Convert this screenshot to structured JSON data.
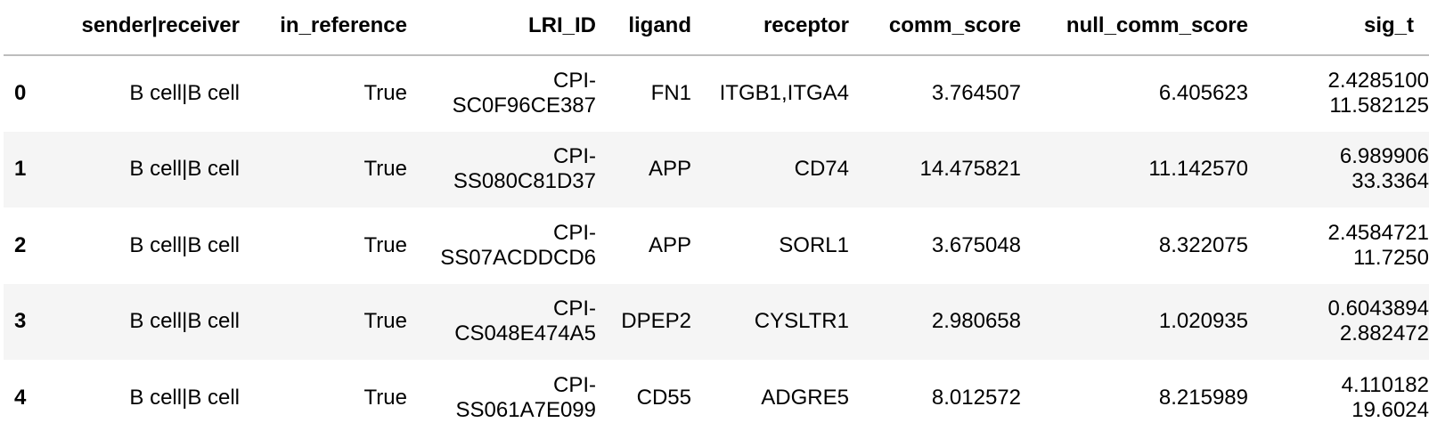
{
  "table": {
    "columns": [
      "",
      "sender|receiver",
      "in_reference",
      "LRI_ID",
      "ligand",
      "receptor",
      "comm_score",
      "null_comm_score",
      "sig_t"
    ],
    "rows": [
      {
        "index": "0",
        "sender_receiver": "B cell|B cell",
        "in_reference": "True",
        "lri_id_line1": "CPI-",
        "lri_id_line2": "SC0F96CE387",
        "ligand": "FN1",
        "receptor": "ITGB1,ITGA4",
        "comm_score": "3.764507",
        "null_comm_score": "6.405623",
        "sig_line1": "2.4285100",
        "sig_line2": "11.582125"
      },
      {
        "index": "1",
        "sender_receiver": "B cell|B cell",
        "in_reference": "True",
        "lri_id_line1": "CPI-",
        "lri_id_line2": "SS080C81D37",
        "ligand": "APP",
        "receptor": "CD74",
        "comm_score": "14.475821",
        "null_comm_score": "11.142570",
        "sig_line1": "6.989906",
        "sig_line2": "33.3364"
      },
      {
        "index": "2",
        "sender_receiver": "B cell|B cell",
        "in_reference": "True",
        "lri_id_line1": "CPI-",
        "lri_id_line2": "SS07ACDDCD6",
        "ligand": "APP",
        "receptor": "SORL1",
        "comm_score": "3.675048",
        "null_comm_score": "8.322075",
        "sig_line1": "2.4584721",
        "sig_line2": "11.7250"
      },
      {
        "index": "3",
        "sender_receiver": "B cell|B cell",
        "in_reference": "True",
        "lri_id_line1": "CPI-",
        "lri_id_line2": "CS048E474A5",
        "ligand": "DPEP2",
        "receptor": "CYSLTR1",
        "comm_score": "2.980658",
        "null_comm_score": "1.020935",
        "sig_line1": "0.6043894",
        "sig_line2": "2.882472"
      },
      {
        "index": "4",
        "sender_receiver": "B cell|B cell",
        "in_reference": "True",
        "lri_id_line1": "CPI-",
        "lri_id_line2": "SS061A7E099",
        "ligand": "CD55",
        "receptor": "ADGRE5",
        "comm_score": "8.012572",
        "null_comm_score": "8.215989",
        "sig_line1": "4.110182",
        "sig_line2": "19.6024"
      }
    ]
  }
}
